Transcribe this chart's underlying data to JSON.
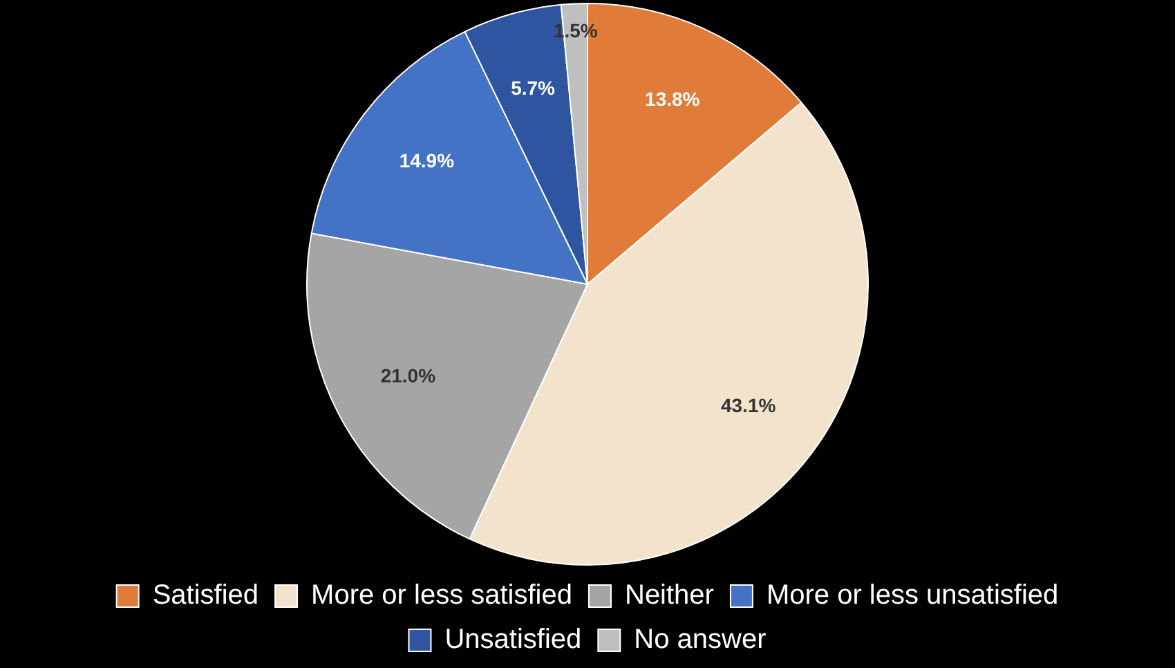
{
  "chart_data": {
    "type": "pie",
    "categories": [
      "Satisfied",
      "More or less satisfied",
      "Neither",
      "More or less unsatisfied",
      "Unsatisfied",
      "No answer"
    ],
    "values": [
      13.8,
      43.1,
      21.0,
      14.9,
      5.7,
      1.5
    ],
    "colors": [
      "#e07b39",
      "#f3e3cc",
      "#a5a5a5",
      "#4472c4",
      "#2f55a0",
      "#bfbfbf"
    ],
    "value_labels": [
      "13.8%",
      "43.1%",
      "21.0%",
      "14.9%",
      "5.7%",
      "1.5%"
    ],
    "legend": "bottom"
  }
}
